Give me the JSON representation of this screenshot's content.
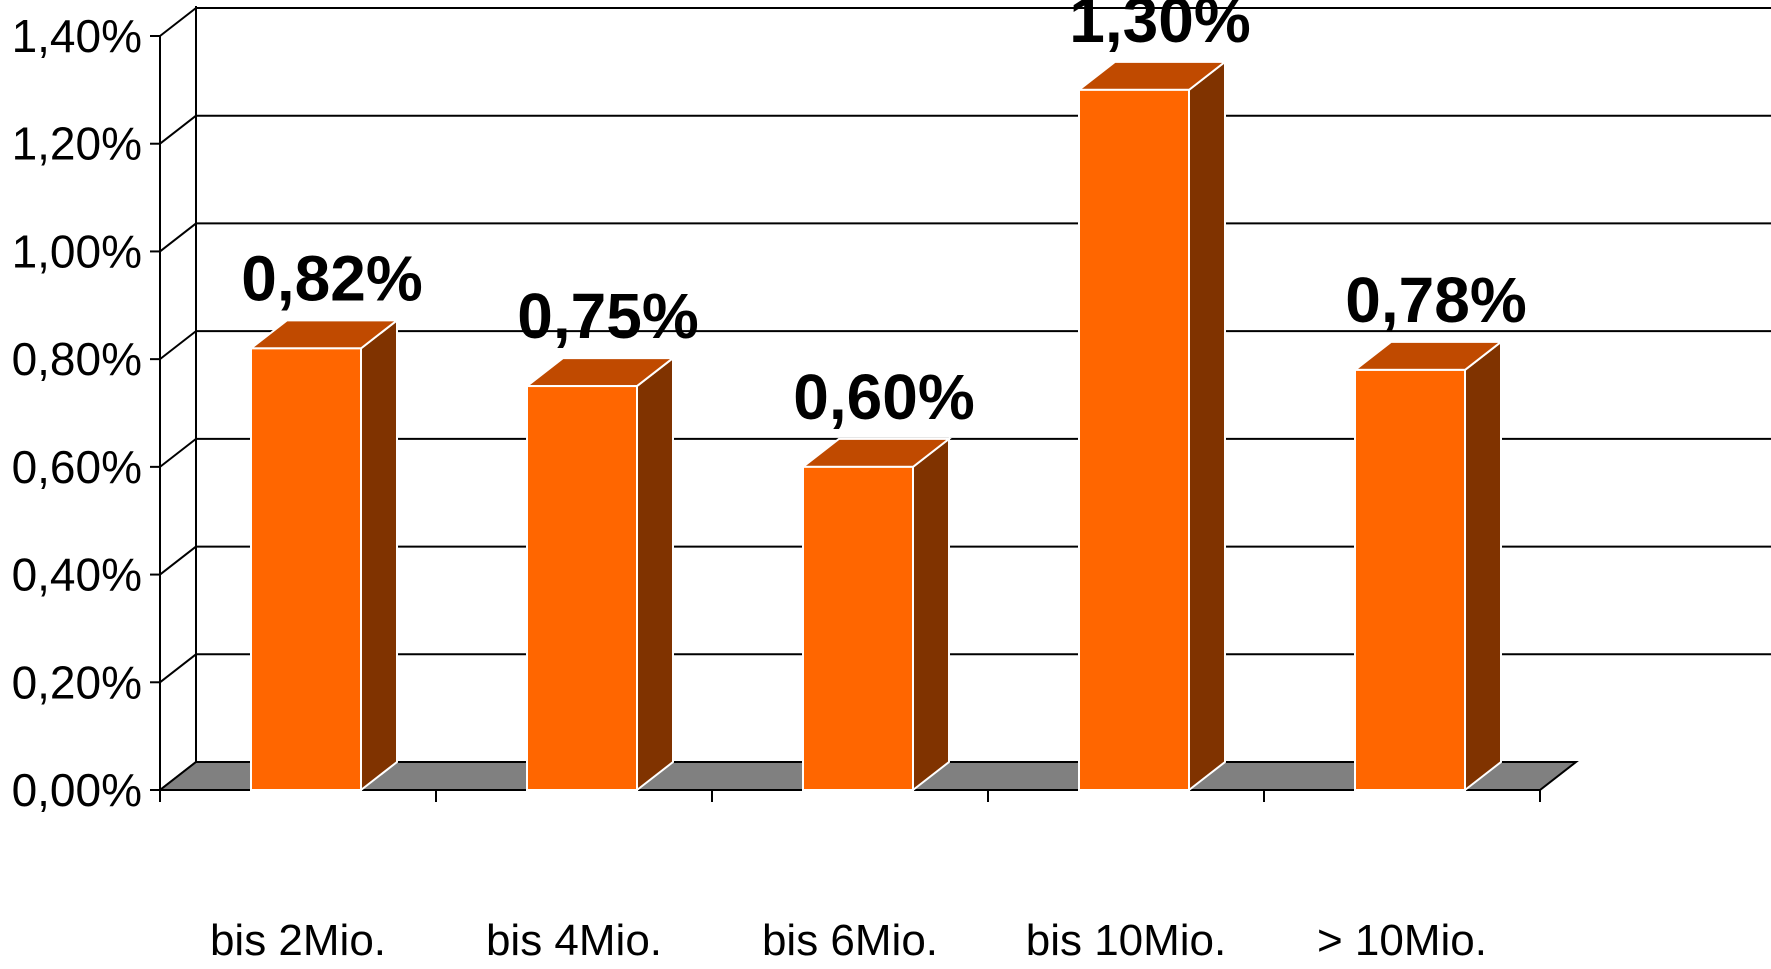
{
  "chart_data": {
    "type": "bar",
    "categories": [
      "bis 2Mio.",
      "bis 4Mio.",
      "bis 6Mio.",
      "bis 10Mio.",
      "> 10Mio."
    ],
    "values": [
      0.82,
      0.75,
      0.6,
      1.3,
      0.78
    ],
    "data_labels": [
      "0,82%",
      "0,75%",
      "0,60%",
      "1,30%",
      "0,78%"
    ],
    "y_ticks": [
      0.0,
      0.2,
      0.4,
      0.6,
      0.8,
      1.0,
      1.2,
      1.4
    ],
    "y_tick_labels": [
      "0,00%",
      "0,20%",
      "0,40%",
      "0,60%",
      "0,80%",
      "1,00%",
      "1,20%",
      "1,40%"
    ],
    "ylim": [
      0,
      1.4
    ],
    "title": "",
    "xlabel": "",
    "ylabel": "",
    "grid": true,
    "style": "3d-bar",
    "colors": {
      "bar_front": "#FF6600",
      "bar_top": "#C04A00",
      "bar_side": "#803300",
      "floor": "#808080",
      "gridline": "#000000"
    }
  }
}
